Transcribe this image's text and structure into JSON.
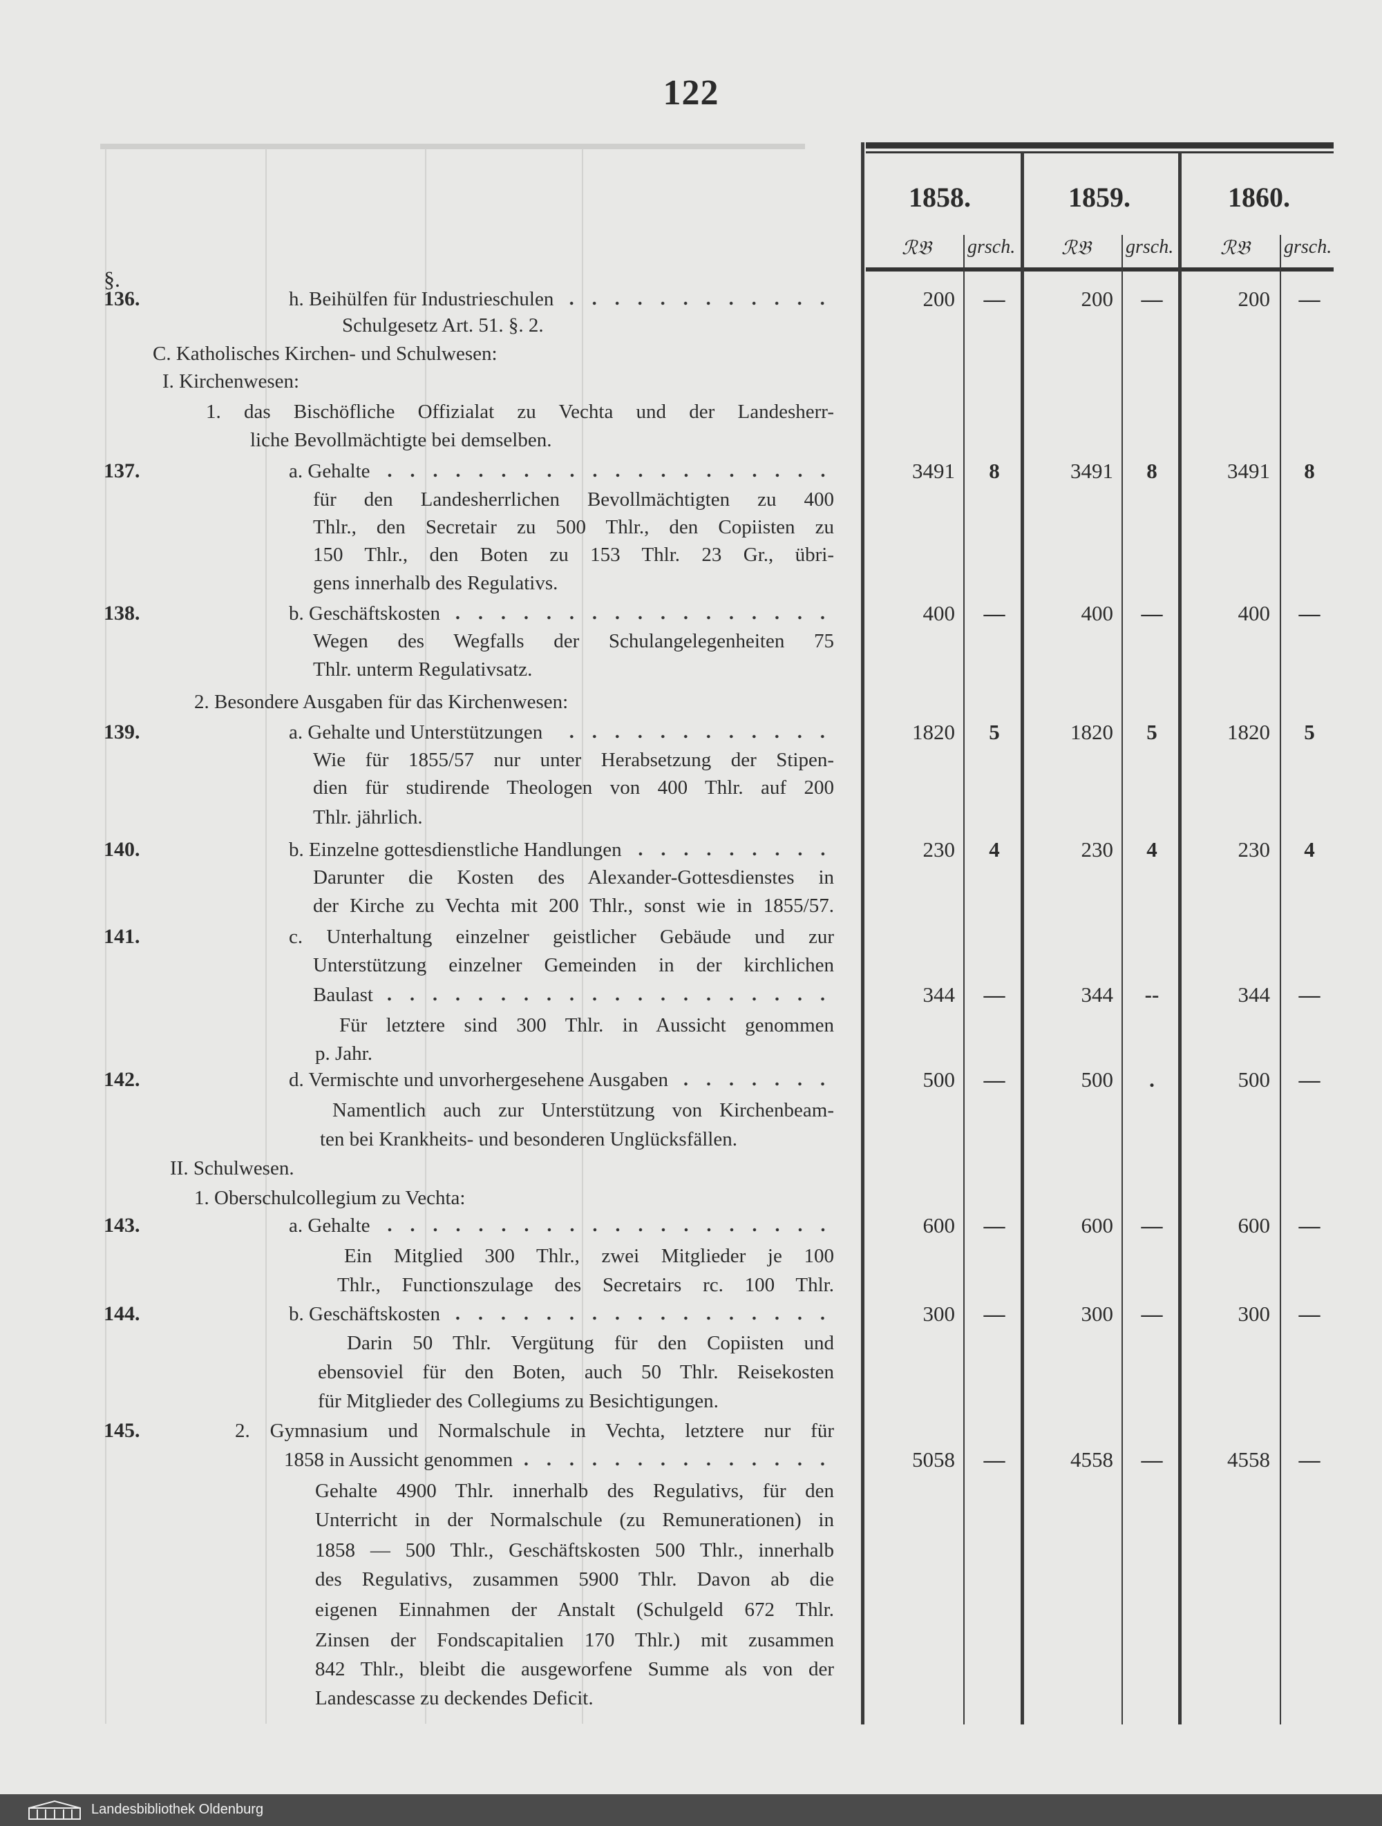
{
  "page_number": "122",
  "paragraph_sign": "§.",
  "header": {
    "years": [
      "1858.",
      "1859.",
      "1860."
    ],
    "unit_thaler": "ℛ𝔅",
    "unit_groschen": "grsch."
  },
  "lines": [
    {
      "no": "136.",
      "text": "h. Beihülfen für Industrieschulen",
      "amounts": [
        [
          "200",
          "—"
        ],
        [
          "200",
          "—"
        ],
        [
          "200",
          "—"
        ]
      ]
    },
    {
      "text": "Schulgesetz Art. 51. §. 2."
    },
    {
      "text": "C. Katholisches Kirchen- und Schulwesen:"
    },
    {
      "text": "I. Kirchenwesen:"
    },
    {
      "text": "1. das Bischöfliche Offizialat zu Vechta und der Landesherr-"
    },
    {
      "text": "liche Bevollmächtigte bei demselben."
    },
    {
      "no": "137.",
      "text": "a. Gehalte",
      "amounts": [
        [
          "3491",
          "8"
        ],
        [
          "3491",
          "8"
        ],
        [
          "3491",
          "8"
        ]
      ]
    },
    {
      "text": "für den Landesherrlichen Bevollmächtigten zu 400"
    },
    {
      "text": "Thlr., den Secretair zu 500 Thlr., den Copiisten zu"
    },
    {
      "text": "150 Thlr., den Boten zu 153 Thlr. 23 Gr., übri-"
    },
    {
      "text": "gens innerhalb des Regulativs."
    },
    {
      "no": "138.",
      "text": "b. Geschäftskosten",
      "amounts": [
        [
          "400",
          "—"
        ],
        [
          "400",
          "—"
        ],
        [
          "400",
          "—"
        ]
      ]
    },
    {
      "text": "Wegen des Wegfalls der Schulangelegenheiten 75"
    },
    {
      "text": "Thlr. unterm Regulativsatz."
    },
    {
      "text": "2. Besondere Ausgaben für das Kirchenwesen:"
    },
    {
      "no": "139.",
      "text": "a. Gehalte und Unterstützungen",
      "amounts": [
        [
          "1820",
          "5"
        ],
        [
          "1820",
          "5"
        ],
        [
          "1820",
          "5"
        ]
      ]
    },
    {
      "text": "Wie für 1855/57 nur unter Herabsetzung der Stipen-"
    },
    {
      "text": "dien für studirende Theologen von 400 Thlr. auf 200"
    },
    {
      "text": "Thlr. jährlich."
    },
    {
      "no": "140.",
      "text": "b. Einzelne gottesdienstliche Handlungen",
      "amounts": [
        [
          "230",
          "4"
        ],
        [
          "230",
          "4"
        ],
        [
          "230",
          "4"
        ]
      ]
    },
    {
      "text": "Darunter die Kosten des Alexander-Gottesdienstes in"
    },
    {
      "text": "der Kirche zu Vechta mit 200 Thlr., sonst wie in 1855/57."
    },
    {
      "no": "141.",
      "text": "c. Unterhaltung einzelner geistlicher Gebäude und zur"
    },
    {
      "text": "Unterstützung einzelner Gemeinden in der kirchlichen"
    },
    {
      "text": "Baulast",
      "amounts": [
        [
          "344",
          "—"
        ],
        [
          "344",
          "--"
        ],
        [
          "344",
          "—"
        ]
      ]
    },
    {
      "text": "Für letztere sind 300 Thlr. in Aussicht genommen"
    },
    {
      "text": "p. Jahr."
    },
    {
      "no": "142.",
      "text": "d. Vermischte und unvorhergesehene Ausgaben",
      "amounts": [
        [
          "500",
          "—"
        ],
        [
          "500",
          "."
        ],
        [
          "500",
          "—"
        ]
      ]
    },
    {
      "text": "Namentlich auch zur Unterstützung von Kirchenbeam-"
    },
    {
      "text": "ten bei Krankheits- und besonderen Unglücksfällen."
    },
    {
      "text": "II. Schulwesen."
    },
    {
      "text": "1. Oberschulcollegium zu Vechta:"
    },
    {
      "no": "143.",
      "text": "a. Gehalte",
      "amounts": [
        [
          "600",
          "—"
        ],
        [
          "600",
          "—"
        ],
        [
          "600",
          "—"
        ]
      ]
    },
    {
      "text": "Ein Mitglied 300 Thlr., zwei Mitglieder je 100"
    },
    {
      "text": "Thlr., Functionszulage des Secretairs rc. 100 Thlr."
    },
    {
      "no": "144.",
      "text": "b. Geschäftskosten",
      "amounts": [
        [
          "300",
          "—"
        ],
        [
          "300",
          "—"
        ],
        [
          "300",
          "—"
        ]
      ]
    },
    {
      "text": "Darin 50 Thlr. Vergütung für den Copiisten und"
    },
    {
      "text": "ebensoviel für den Boten, auch 50 Thlr. Reisekosten"
    },
    {
      "text": "für Mitglieder des Collegiums zu Besichtigungen."
    },
    {
      "no": "145.",
      "text": "2. Gymnasium und Normalschule in Vechta, letztere nur für"
    },
    {
      "text": "1858 in Aussicht genommen",
      "amounts": [
        [
          "5058",
          "—"
        ],
        [
          "4558",
          "—"
        ],
        [
          "4558",
          "—"
        ]
      ]
    },
    {
      "text": "Gehalte 4900 Thlr. innerhalb des Regulativs, für den"
    },
    {
      "text": "Unterricht in der Normalschule (zu Remunerationen) in"
    },
    {
      "text": "1858 — 500 Thlr., Geschäftskosten 500 Thlr., innerhalb"
    },
    {
      "text": "des Regulativs, zusammen 5900 Thlr. Davon ab die"
    },
    {
      "text": "eigenen Einnahmen der Anstalt (Schulgeld 672 Thlr."
    },
    {
      "text": "Zinsen der Fondscapitalien 170 Thlr.) mit zusammen"
    },
    {
      "text": "842 Thlr., bleibt die ausgeworfene Summe als von der"
    },
    {
      "text": "Landescasse zu deckendes Deficit."
    }
  ],
  "footer": {
    "library": "Landesbibliothek Oldenburg"
  }
}
